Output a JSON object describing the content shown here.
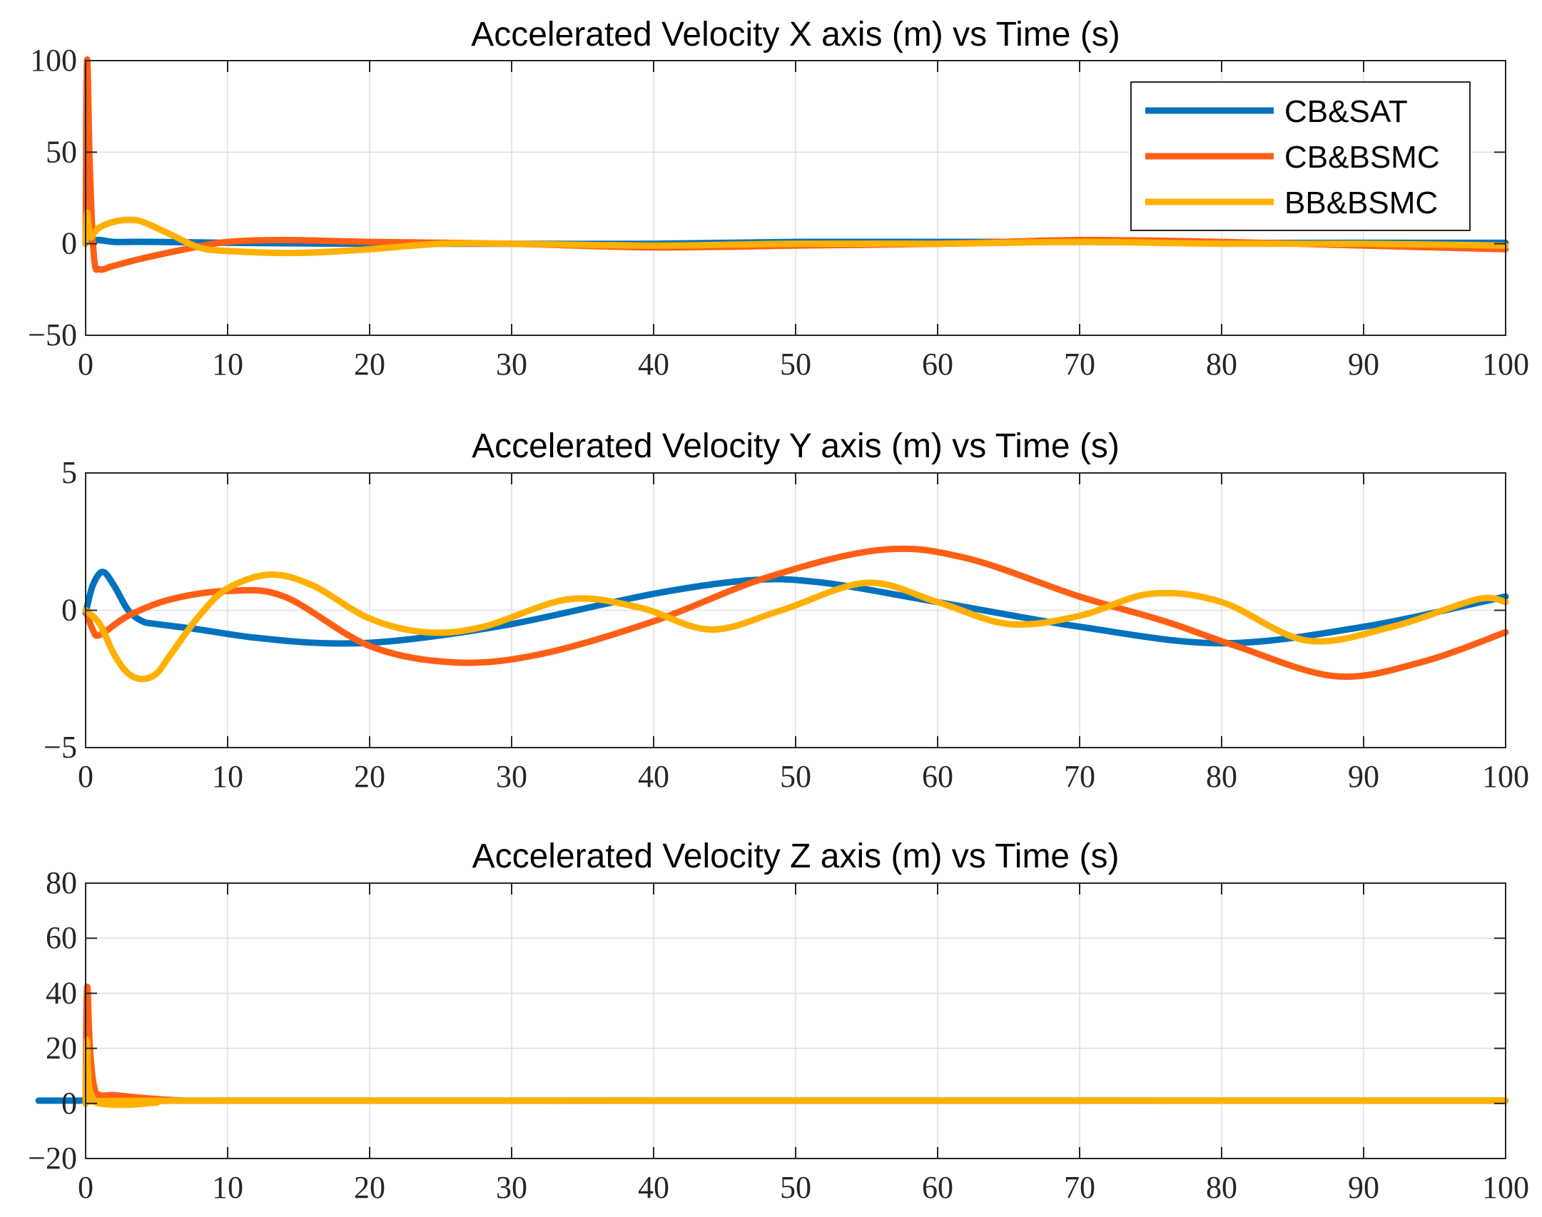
{
  "colors": {
    "CB&SAT": "#0072BD",
    "CB&BSMC": "#FF5F15",
    "BB&BSMC": "#FFB000"
  },
  "legend": {
    "placement": "top-right",
    "entries": [
      "CB&SAT",
      "CB&BSMC",
      "BB&BSMC"
    ]
  },
  "chart_data": [
    {
      "type": "line",
      "title": "Accelerated Velocity X axis (m) vs Time (s)",
      "xlabel": "",
      "ylabel": "",
      "xlim": [
        0,
        100
      ],
      "ylim": [
        -50,
        100
      ],
      "xticks": [
        0,
        10,
        20,
        30,
        40,
        50,
        60,
        70,
        80,
        90,
        100
      ],
      "yticks": [
        -50,
        0,
        50,
        100
      ],
      "ytick_labels": [
        "−50",
        "0",
        "50",
        "100"
      ],
      "grid": true,
      "legend": true,
      "series": [
        {
          "name": "CB&SAT",
          "x": [
            0,
            0.2,
            0.5,
            1,
            2,
            3,
            5,
            10,
            20,
            30,
            40,
            50,
            60,
            70,
            80,
            90,
            100
          ],
          "values": [
            0,
            3,
            2,
            2,
            1,
            1,
            1,
            0.5,
            0,
            0,
            0,
            1,
            1,
            1,
            0.5,
            0.5,
            0.5
          ]
        },
        {
          "name": "CB&BSMC",
          "x": [
            0,
            0.1,
            0.3,
            0.6,
            1,
            2,
            4,
            7,
            10,
            14,
            20,
            30,
            40,
            50,
            60,
            70,
            80,
            90,
            100
          ],
          "values": [
            0,
            100,
            40,
            -8,
            -14,
            -12,
            -8,
            -3,
            1,
            2,
            1,
            0,
            -2,
            -1,
            0,
            2,
            1,
            -1,
            -3
          ]
        },
        {
          "name": "BB&BSMC",
          "x": [
            0,
            0.1,
            0.3,
            0.6,
            1,
            2,
            3,
            4,
            6,
            8,
            10,
            15,
            20,
            25,
            30,
            40,
            50,
            60,
            70,
            80,
            90,
            100
          ],
          "values": [
            0,
            17,
            4,
            6,
            9,
            12,
            13,
            12,
            5,
            -2,
            -4,
            -5,
            -3,
            0,
            0,
            -1,
            0,
            0,
            1,
            0,
            0,
            -1
          ]
        }
      ]
    },
    {
      "type": "line",
      "title": "Accelerated Velocity Y axis (m) vs Time (s)",
      "xlabel": "",
      "ylabel": "",
      "xlim": [
        0,
        100
      ],
      "ylim": [
        -5,
        5
      ],
      "xticks": [
        0,
        10,
        20,
        30,
        40,
        50,
        60,
        70,
        80,
        90,
        100
      ],
      "yticks": [
        -5,
        0,
        5
      ],
      "ytick_labels": [
        "−5",
        "0",
        "5"
      ],
      "grid": true,
      "legend": false,
      "series": [
        {
          "name": "CB&SAT",
          "x": [
            0,
            0.5,
            1.2,
            2,
            3,
            4,
            5,
            8,
            12,
            17,
            22,
            30,
            40,
            47,
            52,
            60,
            70,
            80,
            90,
            100
          ],
          "values": [
            -0.1,
            0.9,
            1.4,
            0.9,
            0,
            -0.4,
            -0.5,
            -0.7,
            -1.0,
            -1.2,
            -1.1,
            -0.5,
            0.6,
            1.1,
            1.0,
            0.3,
            -0.6,
            -1.2,
            -0.6,
            0.5
          ]
        },
        {
          "name": "CB&BSMC",
          "x": [
            0,
            0.5,
            1,
            3,
            6,
            10,
            14,
            20,
            26,
            32,
            40,
            48,
            56,
            62,
            70,
            76,
            81,
            88,
            94,
            100
          ],
          "values": [
            0,
            -0.7,
            -0.9,
            -0.2,
            0.4,
            0.7,
            0.5,
            -1.3,
            -1.9,
            -1.6,
            -0.4,
            1.2,
            2.2,
            1.9,
            0.5,
            -0.4,
            -1.3,
            -2.4,
            -1.9,
            -0.8
          ]
        },
        {
          "name": "BB&BSMC",
          "x": [
            0,
            1,
            2,
            3,
            4,
            5,
            6,
            8,
            10,
            13,
            16,
            20,
            24,
            28,
            34,
            39,
            44,
            49,
            55,
            60,
            65,
            70,
            75,
            80,
            86,
            92,
            98,
            100
          ],
          "values": [
            0,
            -0.5,
            -1.6,
            -2.3,
            -2.5,
            -2.3,
            -1.6,
            -0.2,
            0.8,
            1.3,
            0.9,
            -0.3,
            -0.8,
            -0.6,
            0.4,
            0.1,
            -0.7,
            0.0,
            1.0,
            0.3,
            -0.5,
            -0.2,
            0.6,
            0.3,
            -1.1,
            -0.6,
            0.4,
            0.3
          ]
        }
      ]
    },
    {
      "type": "line",
      "title": "Accelerated Velocity Z axis (m) vs Time (s)",
      "xlabel": "",
      "ylabel": "",
      "xlim": [
        0,
        100
      ],
      "ylim": [
        -20,
        80
      ],
      "xticks": [
        0,
        10,
        20,
        30,
        40,
        50,
        60,
        70,
        80,
        90,
        100
      ],
      "yticks": [
        -20,
        0,
        20,
        40,
        60,
        80
      ],
      "ytick_labels": [
        "−20",
        "0",
        "20",
        "40",
        "60",
        "80"
      ],
      "grid": true,
      "legend": false,
      "series": [
        {
          "name": "CB&SAT",
          "x": [
            0,
            0.1,
            0.3,
            1,
            5,
            100
          ],
          "values": [
            0,
            3,
            1,
            1,
            1,
            1
          ]
        },
        {
          "name": "CB&BSMC",
          "x": [
            0,
            0.1,
            0.3,
            0.6,
            1,
            2,
            4,
            7,
            10,
            100
          ],
          "values": [
            0,
            42,
            20,
            6,
            3,
            3,
            2,
            1,
            1,
            1
          ]
        },
        {
          "name": "BB&BSMC",
          "x": [
            0,
            0.1,
            0.2,
            0.5,
            1,
            3,
            5,
            8,
            100
          ],
          "values": [
            0,
            23,
            8,
            2,
            0,
            -0.5,
            0.3,
            1,
            1
          ]
        }
      ]
    }
  ]
}
